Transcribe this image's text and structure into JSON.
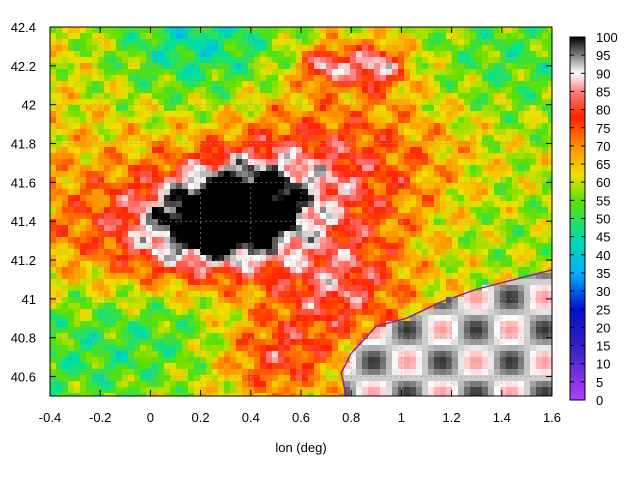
{
  "chart_data": {
    "type": "heatmap",
    "title": "",
    "xlabel": "lon (deg)",
    "ylabel": "",
    "xlim": [
      -0.4,
      1.6
    ],
    "ylim": [
      40.5,
      42.4
    ],
    "x_ticks": [
      -0.4,
      -0.2,
      0,
      0.2,
      0.4,
      0.6,
      0.8,
      1,
      1.2,
      1.4,
      1.6
    ],
    "x_tick_labels": [
      "-0.4",
      "-0.2",
      "0",
      "0.2",
      "0.4",
      "0.6",
      "0.8",
      "1",
      "1.2",
      "1.4",
      "1.6"
    ],
    "y_ticks": [
      40.6,
      40.8,
      41,
      41.2,
      41.4,
      41.6,
      41.8,
      42,
      42.2,
      42.4
    ],
    "y_tick_labels": [
      "40.6",
      "40.8",
      "41",
      "41.2",
      "41.4",
      "41.6",
      "41.8",
      "42",
      "42.2",
      "42.4"
    ],
    "grid": true,
    "colorbar": {
      "min": 0,
      "max": 100,
      "ticks": [
        0,
        5,
        10,
        15,
        20,
        25,
        30,
        35,
        40,
        45,
        50,
        55,
        60,
        65,
        70,
        75,
        80,
        85,
        90,
        95,
        100
      ],
      "tick_labels": [
        "0",
        "5",
        "10",
        "15",
        "20",
        "25",
        "30",
        "35",
        "40",
        "45",
        "50",
        "55",
        "60",
        "65",
        "70",
        "75",
        "80",
        "85",
        "90",
        "95",
        "100"
      ],
      "colors": [
        {
          "v": 0,
          "c": "#b040ff"
        },
        {
          "v": 15,
          "c": "#3020c0"
        },
        {
          "v": 25,
          "c": "#0010d0"
        },
        {
          "v": 35,
          "c": "#00b0ff"
        },
        {
          "v": 45,
          "c": "#00e0a0"
        },
        {
          "v": 55,
          "c": "#60e000"
        },
        {
          "v": 62,
          "c": "#f0e000"
        },
        {
          "v": 70,
          "c": "#ff9000"
        },
        {
          "v": 78,
          "c": "#ff2000"
        },
        {
          "v": 85,
          "c": "#ff8080"
        },
        {
          "v": 90,
          "c": "#ffffff"
        },
        {
          "v": 100,
          "c": "#000000"
        }
      ]
    },
    "field_features": [
      {
        "lon": 0.35,
        "lat": 41.45,
        "value": 95,
        "spread": 0.16
      },
      {
        "lon": 0.15,
        "lat": 41.35,
        "value": 88,
        "spread": 0.2
      },
      {
        "lon": 0.55,
        "lat": 41.55,
        "value": 82,
        "spread": 0.25
      },
      {
        "lon": 0.9,
        "lat": 42.2,
        "value": 88,
        "spread": 0.08
      },
      {
        "lon": 0.7,
        "lat": 42.2,
        "value": 85,
        "spread": 0.07
      },
      {
        "lon": 0.75,
        "lat": 41.05,
        "value": 80,
        "spread": 0.18
      },
      {
        "lon": 0.5,
        "lat": 40.7,
        "value": 78,
        "spread": 0.15
      },
      {
        "lon": -0.25,
        "lat": 41.35,
        "value": 72,
        "spread": 0.3
      },
      {
        "lon": 1.0,
        "lat": 41.75,
        "value": 72,
        "spread": 0.35
      },
      {
        "lon": -0.3,
        "lat": 40.75,
        "value": 50,
        "spread": 0.3
      },
      {
        "lon": 1.4,
        "lat": 42.2,
        "value": 50,
        "spread": 0.3
      },
      {
        "lon": 0.2,
        "lat": 42.35,
        "value": 45,
        "spread": 0.25
      },
      {
        "lon": 1.4,
        "lat": 41.4,
        "value": 55,
        "spread": 0.25
      },
      {
        "lon": 0.1,
        "lat": 40.9,
        "value": 55,
        "spread": 0.2
      }
    ],
    "sea_value": 92,
    "coastline": [
      [
        0.78,
        40.5
      ],
      [
        0.76,
        40.62
      ],
      [
        0.8,
        40.72
      ],
      [
        0.9,
        40.86
      ],
      [
        1.02,
        40.9
      ],
      [
        1.15,
        40.98
      ],
      [
        1.3,
        41.05
      ],
      [
        1.45,
        41.1
      ],
      [
        1.6,
        41.15
      ]
    ]
  }
}
